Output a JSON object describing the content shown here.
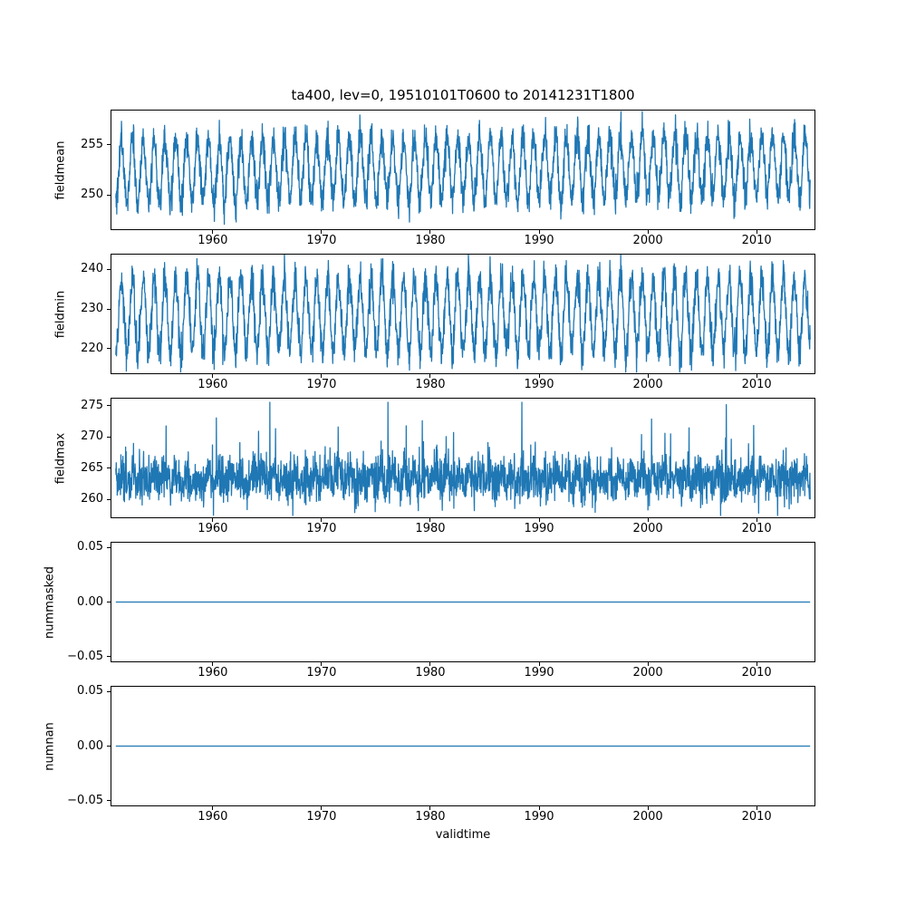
{
  "title": "ta400, lev=0, 19510101T0600 to 20141231T1800",
  "x": {
    "label": "validtime",
    "start": 1951.0,
    "end": 2015.0,
    "xlim": [
      1950.6,
      2015.4
    ],
    "ticks": [
      1960,
      1970,
      1980,
      1990,
      2000,
      2010
    ],
    "points_per_year": 44
  },
  "line": {
    "color": "#1f77b4",
    "width": 1.3
  },
  "seed": 1234567,
  "chart_data": [
    {
      "type": "line",
      "ylabel": "fieldmean",
      "ylim": [
        246.5,
        258.5
      ],
      "ytick_values": [
        250,
        255
      ],
      "ytick_labels": [
        "250",
        "255"
      ],
      "grid": false,
      "series": {
        "kind": "seasonal",
        "name": "fieldmean",
        "baseline": 252.4,
        "amplitude": 3.1,
        "noise_sd": 0.85,
        "trend_per_year": 0.008,
        "clip": [
          247.0,
          258.4
        ]
      }
    },
    {
      "type": "line",
      "ylabel": "fieldmin",
      "ylim": [
        213.5,
        244.0
      ],
      "ytick_values": [
        220,
        230,
        240
      ],
      "ytick_labels": [
        "220",
        "230",
        "240"
      ],
      "grid": false,
      "series": {
        "kind": "seasonal",
        "name": "fieldmin",
        "baseline": 228.5,
        "amplitude": 9.5,
        "noise_sd": 2.4,
        "trend_per_year": 0,
        "clip": [
          213.8,
          244.3
        ]
      }
    },
    {
      "type": "line",
      "ylabel": "fieldmax",
      "ylim": [
        257.0,
        276.3
      ],
      "ytick_values": [
        260,
        265,
        270,
        275
      ],
      "ytick_labels": [
        "260",
        "265",
        "270",
        "275"
      ],
      "grid": false,
      "series": {
        "kind": "spiky",
        "name": "fieldmax",
        "baseline": 263.3,
        "amplitude": 0.9,
        "noise_sd": 1.7,
        "up_spike_prob": 0.05,
        "up_spike_scale": 3.2,
        "down_spike_prob": 0.025,
        "down_spike_scale": 1.6,
        "trend_per_year": 0,
        "clip": [
          257.3,
          275.7
        ]
      }
    },
    {
      "type": "line",
      "ylabel": "nummasked",
      "ylim": [
        -0.055,
        0.055
      ],
      "ytick_values": [
        0.05,
        0.0,
        -0.05
      ],
      "ytick_labels": [
        "0.05",
        "0.00",
        "−0.05"
      ],
      "grid": false,
      "series": {
        "kind": "constant",
        "name": "nummasked",
        "value": 0.0
      }
    },
    {
      "type": "line",
      "ylabel": "numnan",
      "ylim": [
        -0.055,
        0.055
      ],
      "ytick_values": [
        0.05,
        0.0,
        -0.05
      ],
      "ytick_labels": [
        "0.05",
        "0.00",
        "−0.05"
      ],
      "grid": false,
      "series": {
        "kind": "constant",
        "name": "numnan",
        "value": 0.0
      }
    }
  ]
}
